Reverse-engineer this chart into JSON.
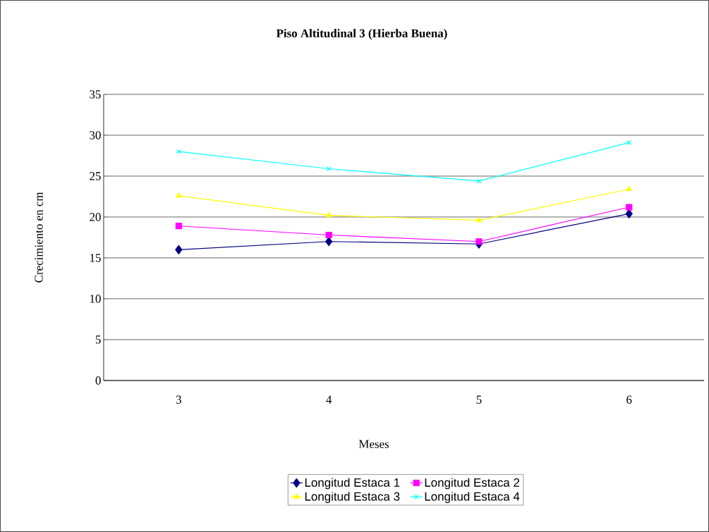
{
  "chart_data": {
    "type": "line",
    "title": "Piso Altitudinal 3 (Hierba Buena)",
    "xlabel": "Meses",
    "ylabel": "Crecimiento en cm",
    "categories": [
      "3",
      "4",
      "5",
      "6"
    ],
    "series": [
      {
        "name": "Longitud Estaca 1",
        "color": "#000080",
        "marker": "diamond",
        "values": [
          16.0,
          17.0,
          16.7,
          20.4
        ]
      },
      {
        "name": "Longitud Estaca 2",
        "color": "#ff00ff",
        "marker": "square",
        "values": [
          18.9,
          17.8,
          17.0,
          21.2
        ]
      },
      {
        "name": "Longitud Estaca 3",
        "color": "#ffff00",
        "marker": "triangle",
        "values": [
          22.6,
          20.2,
          19.6,
          23.4
        ]
      },
      {
        "name": "Longitud Estaca 4",
        "color": "#00ffff",
        "marker": "cross",
        "values": [
          28.0,
          25.9,
          24.4,
          29.1
        ]
      }
    ],
    "ylim": [
      0,
      35
    ],
    "yticks": [
      0,
      5,
      10,
      15,
      20,
      25,
      30,
      35
    ],
    "grid": "y",
    "legend": "bottom",
    "line_style": "solid"
  }
}
